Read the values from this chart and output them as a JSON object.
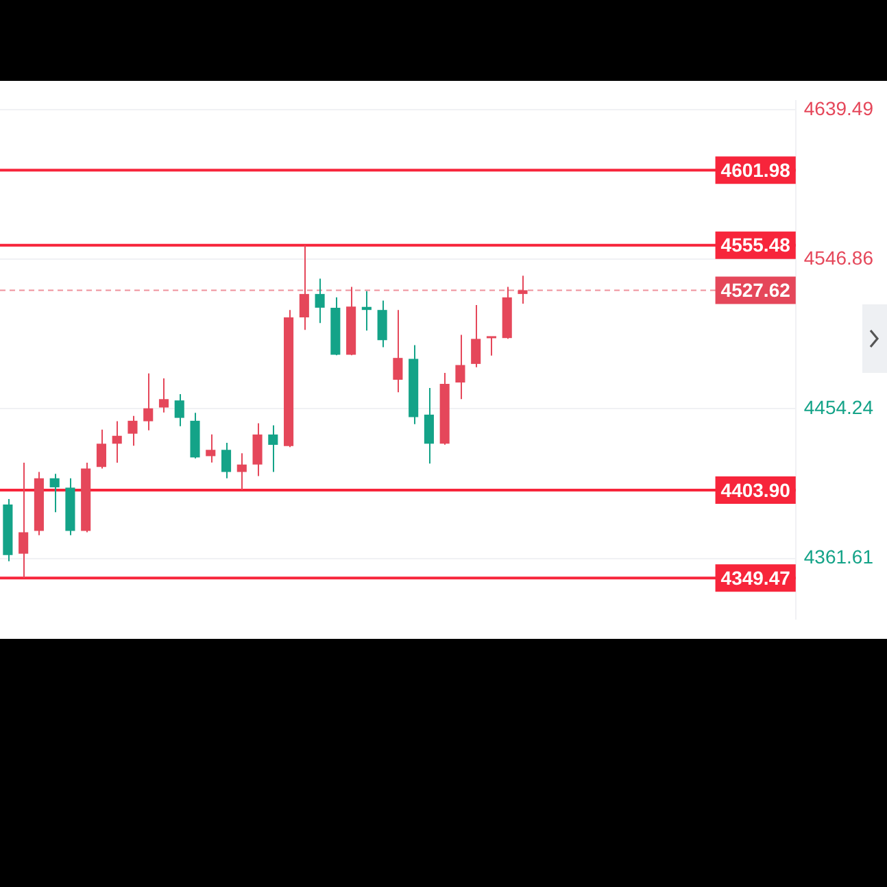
{
  "chart_data": {
    "type": "candlestick",
    "categories": [
      null,
      null,
      null,
      null,
      null,
      null,
      null,
      null,
      null,
      null,
      null,
      null,
      null,
      null,
      null,
      null,
      null,
      null,
      null,
      null,
      null,
      null,
      null,
      null,
      null,
      null,
      null,
      null,
      null,
      null,
      null,
      null,
      null,
      null,
      null,
      null,
      null,
      null,
      null,
      null,
      null,
      null,
      null,
      null,
      null,
      null,
      null,
      null,
      null,
      null,
      null
    ],
    "ohlc": [
      [
        4395.0,
        4398.4,
        4359.8,
        4363.7
      ],
      [
        4364.5,
        4420.8,
        4349.47,
        4377.8
      ],
      [
        4378.6,
        4415.1,
        4376.0,
        4411.2
      ],
      [
        4411.2,
        4413.9,
        4390.2,
        4405.6
      ],
      [
        4405.4,
        4411.2,
        4376.0,
        4378.6
      ],
      [
        4378.6,
        4420.8,
        4377.8,
        4417.2
      ],
      [
        4418.2,
        4441.3,
        4417.2,
        4432.6
      ],
      [
        4432.6,
        4446.5,
        4420.8,
        4437.5
      ],
      [
        4438.8,
        4449.8,
        4431.3,
        4446.8
      ],
      [
        4446.5,
        4476.1,
        4440.9,
        4454.5
      ],
      [
        4455.0,
        4473.0,
        4451.9,
        4460.2
      ],
      [
        4459.4,
        4463.3,
        4443.4,
        4448.6
      ],
      [
        4446.8,
        4451.7,
        4423.5,
        4424.1
      ],
      [
        4424.9,
        4438.3,
        4421.0,
        4428.8
      ],
      [
        4428.8,
        4433.2,
        4411.2,
        4415.1
      ],
      [
        4415.1,
        4426.7,
        4403.9,
        4419.7
      ],
      [
        4419.7,
        4445.2,
        4412.6,
        4438.3
      ],
      [
        4438.3,
        4444.0,
        4415.1,
        4431.9
      ],
      [
        4431.1,
        4515.4,
        4430.5,
        4510.8
      ],
      [
        4510.8,
        4555.48,
        4503.1,
        4525.3
      ],
      [
        4525.3,
        4534.8,
        4507.3,
        4516.8
      ],
      [
        4516.8,
        4523.2,
        4487.4,
        4487.7
      ],
      [
        4487.7,
        4529.7,
        4487.4,
        4517.5
      ],
      [
        4517.3,
        4527.0,
        4502.6,
        4515.4
      ],
      [
        4515.4,
        4521.2,
        4492.3,
        4496.7
      ],
      [
        4472.2,
        4515.4,
        4464.5,
        4485.7
      ],
      [
        4485.1,
        4493.6,
        4444.7,
        4449.1
      ],
      [
        4450.6,
        4467.1,
        4420.3,
        4432.6
      ],
      [
        4432.6,
        4476.4,
        4432.0,
        4469.7
      ],
      [
        4470.5,
        4500.0,
        4460.2,
        4481.3
      ],
      [
        4482.0,
        4518.5,
        4479.9,
        4497.5
      ],
      [
        4497.9,
        4498.8,
        4487.2,
        4498.5
      ],
      [
        4498.0,
        4529.7,
        4497.5,
        4523.2
      ],
      [
        4525.3,
        4536.6,
        4519.3,
        4527.62
      ],
      null,
      null,
      null,
      null,
      null,
      null,
      null,
      null,
      null,
      null,
      null,
      null,
      null,
      null,
      null,
      null,
      null
    ],
    "colors": [
      "#14a388",
      "#e5475a",
      "#e5475a",
      "#14a388",
      "#14a388",
      "#e5475a",
      "#e5475a",
      "#e5475a",
      "#e5475a",
      "#e5475a",
      "#e5475a",
      "#14a388",
      "#14a388",
      "#e5475a",
      "#14a388",
      "#e5475a",
      "#e5475a",
      "#14a388",
      "#e5475a",
      "#e5475a",
      "#14a388",
      "#14a388",
      "#e5475a",
      "#14a388",
      "#14a388",
      "#e5475a",
      "#14a388",
      "#14a388",
      "#e5475a",
      "#e5475a",
      "#e5475a",
      "#e5475a",
      "#e5475a",
      "#e5475a",
      null,
      null,
      null,
      null,
      null,
      null,
      null,
      null,
      null,
      null,
      null,
      null,
      null,
      null,
      null,
      null,
      null
    ],
    "ylim": [
      4324,
      4645
    ],
    "yticks": [
      4361.61,
      4454.24,
      4546.86,
      4639.49
    ],
    "grid": "y",
    "tick_labels": "y",
    "ref_lines": [
      {
        "axis": "y",
        "value": 4601.98,
        "label": "4601.98",
        "color": "#f7253b"
      },
      {
        "axis": "y",
        "value": 4555.48,
        "label": "4555.48",
        "color": "#f7253b"
      },
      {
        "axis": "y",
        "value": 4527.62,
        "label": "4527.62",
        "color": "#e5475a",
        "line_style": "dashed"
      },
      {
        "axis": "y",
        "value": 4403.9,
        "label": "4403.90",
        "color": "#f7253b"
      },
      {
        "axis": "y",
        "value": 4349.47,
        "label": "4349.47",
        "color": "#f7253b"
      }
    ]
  }
}
